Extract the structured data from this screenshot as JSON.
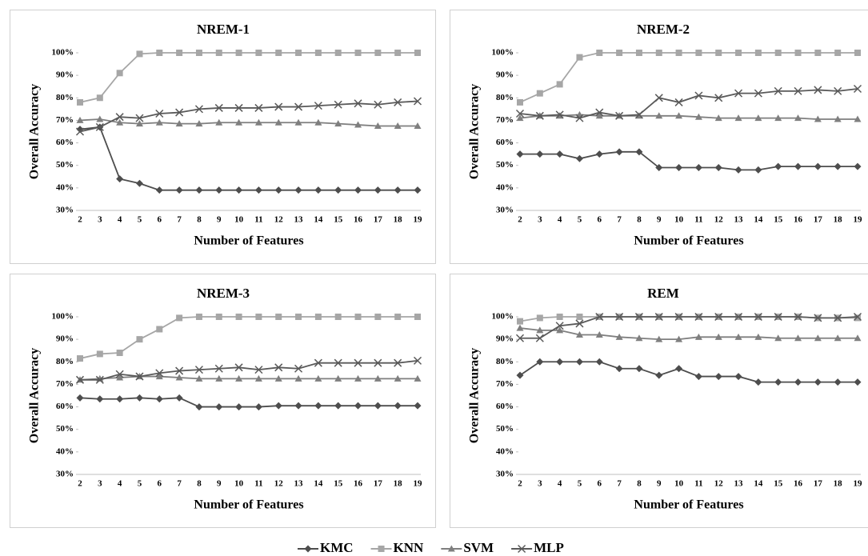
{
  "chart_data": [
    {
      "type": "line",
      "title": "NREM-1",
      "x_label": "Number of Features",
      "y_label": "Overall Accuracy",
      "categories": [
        "2",
        "3",
        "4",
        "5",
        "6",
        "7",
        "8",
        "9",
        "10",
        "11",
        "12",
        "13",
        "14",
        "15",
        "16",
        "17",
        "18",
        "19"
      ],
      "ylim": [
        30,
        100
      ],
      "yticks": [
        {
          "value": 30,
          "label": "30%"
        },
        {
          "value": 40,
          "label": "40%"
        },
        {
          "value": 50,
          "label": "50%"
        },
        {
          "value": 60,
          "label": "60%"
        },
        {
          "value": 70,
          "label": "70%"
        },
        {
          "value": 80,
          "label": "80%"
        },
        {
          "value": 90,
          "label": "90%"
        },
        {
          "value": 100,
          "label": "100%"
        }
      ],
      "series": [
        {
          "marker": "diamond",
          "color": "#4d4d4d",
          "values": [
            66,
            67,
            44,
            42,
            39,
            39,
            39,
            39,
            39,
            39,
            39,
            39,
            39,
            39,
            39,
            39,
            39,
            39
          ]
        },
        {
          "marker": "square",
          "color": "#a6a6a6",
          "values": [
            78,
            80,
            91,
            99.5,
            100,
            100,
            100,
            100,
            100,
            100,
            100,
            100,
            100,
            100,
            100,
            100,
            100,
            100
          ]
        },
        {
          "marker": "triangle",
          "color": "#7f7f7f",
          "values": [
            70,
            70.5,
            69,
            68.5,
            69,
            68.5,
            68.5,
            69,
            69,
            69,
            69,
            69,
            69,
            68.5,
            68,
            67.5,
            67.5,
            67.5
          ]
        },
        {
          "marker": "x",
          "color": "#595959",
          "values": [
            65,
            67,
            71.5,
            71,
            73,
            73.5,
            75,
            75.5,
            75.5,
            75.5,
            76,
            76,
            76.5,
            77,
            77.5,
            77,
            78,
            78.5
          ]
        }
      ]
    },
    {
      "type": "line",
      "title": "NREM-2",
      "x_label": "Number of Features",
      "y_label": "Overall Accuracy",
      "categories": [
        "2",
        "3",
        "4",
        "5",
        "6",
        "7",
        "8",
        "9",
        "10",
        "11",
        "12",
        "13",
        "14",
        "15",
        "16",
        "17",
        "18",
        "19"
      ],
      "ylim": [
        30,
        100
      ],
      "yticks": [
        {
          "value": 30,
          "label": "30%"
        },
        {
          "value": 40,
          "label": "40%"
        },
        {
          "value": 50,
          "label": "50%"
        },
        {
          "value": 60,
          "label": "60%"
        },
        {
          "value": 70,
          "label": "70%"
        },
        {
          "value": 80,
          "label": "80%"
        },
        {
          "value": 90,
          "label": "90%"
        },
        {
          "value": 100,
          "label": "100%"
        }
      ],
      "series": [
        {
          "marker": "diamond",
          "color": "#4d4d4d",
          "values": [
            55,
            55,
            55,
            53,
            55,
            56,
            56,
            49,
            49,
            49,
            49,
            48,
            48,
            49.5,
            49.5,
            49.5,
            49.5,
            49.5
          ]
        },
        {
          "marker": "square",
          "color": "#a6a6a6",
          "values": [
            78,
            82,
            86,
            98,
            100,
            100,
            100,
            100,
            100,
            100,
            100,
            100,
            100,
            100,
            100,
            100,
            100,
            100
          ]
        },
        {
          "marker": "triangle",
          "color": "#7f7f7f",
          "values": [
            71,
            72,
            72,
            72.5,
            72,
            72,
            72,
            72,
            72,
            71.5,
            71,
            71,
            71,
            71,
            71,
            70.5,
            70.5,
            70.5
          ]
        },
        {
          "marker": "x",
          "color": "#595959",
          "values": [
            73,
            72,
            72.5,
            71,
            73.5,
            72,
            72.5,
            80,
            78,
            81,
            80,
            82,
            82,
            83,
            83,
            83.5,
            83,
            84
          ]
        }
      ]
    },
    {
      "type": "line",
      "title": "NREM-3",
      "x_label": "Number of Features",
      "y_label": "Overall Accuracy",
      "categories": [
        "2",
        "3",
        "4",
        "5",
        "6",
        "7",
        "8",
        "9",
        "10",
        "11",
        "12",
        "13",
        "14",
        "15",
        "16",
        "17",
        "18",
        "19"
      ],
      "ylim": [
        30,
        100
      ],
      "yticks": [
        {
          "value": 30,
          "label": "30%"
        },
        {
          "value": 40,
          "label": "40%"
        },
        {
          "value": 50,
          "label": "50%"
        },
        {
          "value": 60,
          "label": "60%"
        },
        {
          "value": 70,
          "label": "70%"
        },
        {
          "value": 80,
          "label": "80%"
        },
        {
          "value": 90,
          "label": "90%"
        },
        {
          "value": 100,
          "label": "100%"
        }
      ],
      "series": [
        {
          "marker": "diamond",
          "color": "#4d4d4d",
          "values": [
            64,
            63.5,
            63.5,
            64,
            63.5,
            64,
            60,
            60,
            60,
            60,
            60.5,
            60.5,
            60.5,
            60.5,
            60.5,
            60.5,
            60.5,
            60.5
          ]
        },
        {
          "marker": "square",
          "color": "#a6a6a6",
          "values": [
            81.5,
            83.5,
            84,
            90,
            94.5,
            99.5,
            100,
            100,
            100,
            100,
            100,
            100,
            100,
            100,
            100,
            100,
            100,
            100
          ]
        },
        {
          "marker": "triangle",
          "color": "#7f7f7f",
          "values": [
            72,
            72.5,
            73,
            73.5,
            73.5,
            73,
            72.5,
            72.5,
            72.5,
            72.5,
            72.5,
            72.5,
            72.5,
            72.5,
            72.5,
            72.5,
            72.5,
            72.5
          ]
        },
        {
          "marker": "x",
          "color": "#595959",
          "values": [
            72,
            72,
            74.5,
            73.5,
            75,
            76,
            76.5,
            77,
            77.5,
            76.5,
            77.5,
            77,
            79.5,
            79.5,
            79.5,
            79.5,
            79.5,
            80.5
          ]
        }
      ]
    },
    {
      "type": "line",
      "title": "REM",
      "x_label": "Number of Features",
      "y_label": "Overall Accuracy",
      "categories": [
        "2",
        "3",
        "4",
        "5",
        "6",
        "7",
        "8",
        "9",
        "10",
        "11",
        "12",
        "13",
        "14",
        "15",
        "16",
        "17",
        "18",
        "19"
      ],
      "ylim": [
        30,
        100
      ],
      "yticks": [
        {
          "value": 30,
          "label": "30%"
        },
        {
          "value": 40,
          "label": "40%"
        },
        {
          "value": 50,
          "label": "50%"
        },
        {
          "value": 60,
          "label": "60%"
        },
        {
          "value": 70,
          "label": "70%"
        },
        {
          "value": 80,
          "label": "80%"
        },
        {
          "value": 90,
          "label": "90%"
        },
        {
          "value": 100,
          "label": "100%"
        }
      ],
      "series": [
        {
          "marker": "diamond",
          "color": "#4d4d4d",
          "values": [
            74,
            80,
            80,
            80,
            80,
            77,
            77,
            74,
            77,
            73.5,
            73.5,
            73.5,
            71,
            71,
            71,
            71,
            71,
            71
          ]
        },
        {
          "marker": "square",
          "color": "#a6a6a6",
          "values": [
            98,
            99.5,
            100,
            100,
            100,
            100,
            100,
            100,
            100,
            100,
            100,
            100,
            100,
            100,
            100,
            99.5,
            99.5,
            99.5
          ]
        },
        {
          "marker": "triangle",
          "color": "#7f7f7f",
          "values": [
            95,
            94,
            94,
            92,
            92,
            91,
            90.5,
            90,
            90,
            91,
            91,
            91,
            91,
            90.5,
            90.5,
            90.5,
            90.5,
            90.5
          ]
        },
        {
          "marker": "x",
          "color": "#595959",
          "values": [
            90.5,
            90.5,
            96,
            97,
            100,
            100,
            100,
            100,
            100,
            100,
            100,
            100,
            100,
            100,
            100,
            99.5,
            99.5,
            100
          ]
        }
      ]
    }
  ],
  "legend": [
    "KMC",
    "KNN",
    "SVM",
    "MLP"
  ]
}
